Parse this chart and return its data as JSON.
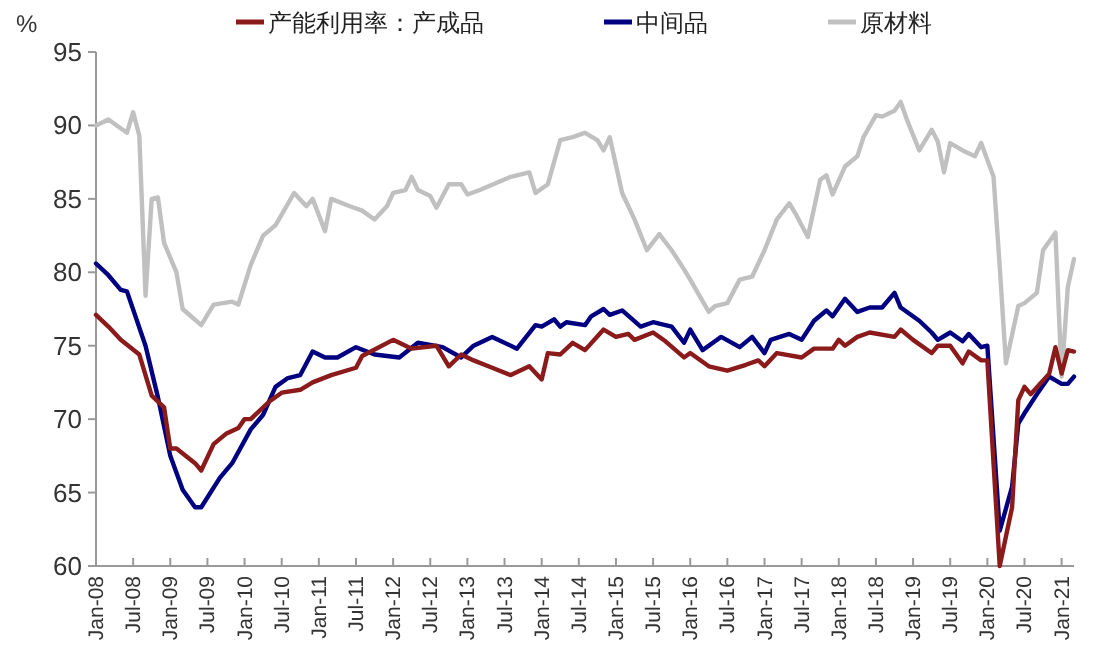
{
  "chart_data": {
    "type": "line",
    "ylabel": "%",
    "ylim": [
      60,
      95
    ],
    "yticks": [
      60,
      65,
      70,
      75,
      80,
      85,
      90,
      95
    ],
    "xlim": [
      "2008-01",
      "2021-03"
    ],
    "xticks": [
      {
        "value": "2008-01",
        "label": "Jan-08"
      },
      {
        "value": "2008-07",
        "label": "Jul-08"
      },
      {
        "value": "2009-01",
        "label": "Jan-09"
      },
      {
        "value": "2009-07",
        "label": "Jul-09"
      },
      {
        "value": "2010-01",
        "label": "Jan-10"
      },
      {
        "value": "2010-07",
        "label": "Jul-10"
      },
      {
        "value": "2011-01",
        "label": "Jan-11"
      },
      {
        "value": "2011-07",
        "label": "Jul-11"
      },
      {
        "value": "2012-01",
        "label": "Jan-12"
      },
      {
        "value": "2012-07",
        "label": "Jul-12"
      },
      {
        "value": "2013-01",
        "label": "Jan-13"
      },
      {
        "value": "2013-07",
        "label": "Jul-13"
      },
      {
        "value": "2014-01",
        "label": "Jan-14"
      },
      {
        "value": "2014-07",
        "label": "Jul-14"
      },
      {
        "value": "2015-01",
        "label": "Jan-15"
      },
      {
        "value": "2015-07",
        "label": "Jul-15"
      },
      {
        "value": "2016-01",
        "label": "Jan-16"
      },
      {
        "value": "2016-07",
        "label": "Jul-16"
      },
      {
        "value": "2017-01",
        "label": "Jan-17"
      },
      {
        "value": "2017-07",
        "label": "Jul-17"
      },
      {
        "value": "2018-01",
        "label": "Jan-18"
      },
      {
        "value": "2018-07",
        "label": "Jul-18"
      },
      {
        "value": "2019-01",
        "label": "Jan-19"
      },
      {
        "value": "2019-07",
        "label": "Jul-19"
      },
      {
        "value": "2020-01",
        "label": "Jan-20"
      },
      {
        "value": "2020-07",
        "label": "Jul-20"
      },
      {
        "value": "2021-01",
        "label": "Jan-21"
      }
    ],
    "grid": false,
    "legend": "top",
    "marker": "none",
    "line_style": "solid",
    "series": [
      {
        "name": "产能利用率：产成品",
        "color": "#8b1a1a",
        "x": [
          "2008-01",
          "2008-03",
          "2008-05",
          "2008-08",
          "2008-10",
          "2008-12",
          "2009-01",
          "2009-02",
          "2009-05",
          "2009-06",
          "2009-08",
          "2009-10",
          "2009-12",
          "2010-01",
          "2010-02",
          "2010-05",
          "2010-07",
          "2010-10",
          "2010-12",
          "2011-03",
          "2011-07",
          "2011-08",
          "2012-01",
          "2012-04",
          "2012-08",
          "2012-10",
          "2012-12",
          "2013-02",
          "2013-05",
          "2013-08",
          "2013-11",
          "2014-01",
          "2014-02",
          "2014-04",
          "2014-06",
          "2014-08",
          "2014-11",
          "2015-01",
          "2015-03",
          "2015-04",
          "2015-07",
          "2015-09",
          "2015-12",
          "2016-01",
          "2016-04",
          "2016-07",
          "2016-10",
          "2016-12",
          "2017-01",
          "2017-03",
          "2017-07",
          "2017-09",
          "2017-12",
          "2018-01",
          "2018-02",
          "2018-04",
          "2018-06",
          "2018-10",
          "2018-11",
          "2019-01",
          "2019-04",
          "2019-05",
          "2019-07",
          "2019-09",
          "2019-10",
          "2019-12",
          "2020-01",
          "2020-03",
          "2020-05",
          "2020-06",
          "2020-07",
          "2020-08",
          "2020-11",
          "2020-12",
          "2021-01",
          "2021-02",
          "2021-03"
        ],
        "values": [
          77.1,
          76.3,
          75.4,
          74.4,
          71.6,
          70.8,
          68.0,
          68.0,
          67.0,
          66.5,
          68.3,
          69.0,
          69.4,
          70.0,
          70.0,
          71.2,
          71.8,
          72.0,
          72.5,
          73.0,
          73.5,
          74.3,
          75.4,
          74.8,
          75.0,
          73.6,
          74.4,
          74.0,
          73.5,
          73.0,
          73.6,
          72.7,
          74.5,
          74.4,
          75.2,
          74.7,
          76.1,
          75.6,
          75.8,
          75.4,
          75.9,
          75.3,
          74.2,
          74.5,
          73.6,
          73.3,
          73.7,
          74.0,
          73.6,
          74.5,
          74.2,
          74.8,
          74.8,
          75.4,
          75.0,
          75.6,
          75.9,
          75.6,
          76.1,
          75.4,
          74.5,
          75.0,
          75.0,
          73.8,
          74.6,
          74.0,
          74.0,
          60.0,
          64.0,
          71.3,
          72.2,
          71.7,
          73.1,
          74.9,
          73.1,
          74.7,
          74.6
        ]
      },
      {
        "name": "中间品",
        "color": "#000080",
        "x": [
          "2008-01",
          "2008-03",
          "2008-05",
          "2008-06",
          "2008-09",
          "2008-11",
          "2009-01",
          "2009-03",
          "2009-05",
          "2009-06",
          "2009-09",
          "2009-11",
          "2010-02",
          "2010-04",
          "2010-06",
          "2010-08",
          "2010-10",
          "2010-12",
          "2011-02",
          "2011-04",
          "2011-07",
          "2011-10",
          "2012-02",
          "2012-05",
          "2012-09",
          "2012-12",
          "2013-02",
          "2013-05",
          "2013-09",
          "2013-12",
          "2014-01",
          "2014-03",
          "2014-04",
          "2014-05",
          "2014-08",
          "2014-09",
          "2014-11",
          "2014-12",
          "2015-02",
          "2015-05",
          "2015-07",
          "2015-10",
          "2015-12",
          "2016-01",
          "2016-03",
          "2016-05",
          "2016-06",
          "2016-09",
          "2016-11",
          "2017-01",
          "2017-02",
          "2017-05",
          "2017-07",
          "2017-09",
          "2017-11",
          "2017-12",
          "2018-02",
          "2018-04",
          "2018-06",
          "2018-08",
          "2018-10",
          "2018-11",
          "2019-02",
          "2019-04",
          "2019-05",
          "2019-07",
          "2019-09",
          "2019-10",
          "2019-12",
          "2020-01",
          "2020-03",
          "2020-05",
          "2020-06",
          "2020-07",
          "2020-09",
          "2020-11",
          "2021-01",
          "2021-02",
          "2021-03"
        ],
        "values": [
          80.6,
          79.8,
          78.8,
          78.7,
          75.0,
          71.5,
          67.5,
          65.2,
          64.0,
          64.0,
          66.0,
          67.0,
          69.3,
          70.3,
          72.2,
          72.8,
          73.0,
          74.6,
          74.2,
          74.2,
          74.9,
          74.4,
          74.2,
          75.2,
          74.9,
          74.2,
          75.0,
          75.6,
          74.8,
          76.4,
          76.3,
          76.8,
          76.3,
          76.6,
          76.4,
          77.0,
          77.5,
          77.1,
          77.4,
          76.3,
          76.6,
          76.3,
          75.2,
          76.1,
          74.7,
          75.3,
          75.6,
          74.9,
          75.6,
          74.5,
          75.4,
          75.8,
          75.4,
          76.7,
          77.4,
          77.0,
          78.2,
          77.3,
          77.6,
          77.6,
          78.6,
          77.6,
          76.7,
          75.9,
          75.4,
          75.9,
          75.3,
          75.8,
          74.9,
          75.0,
          62.4,
          65.4,
          69.7,
          70.4,
          71.7,
          72.9,
          72.4,
          72.4,
          72.9
        ]
      },
      {
        "name": "原材料",
        "color": "#c0c0c0",
        "x": [
          "2008-01",
          "2008-03",
          "2008-06",
          "2008-07",
          "2008-08",
          "2008-09",
          "2008-10",
          "2008-11",
          "2008-12",
          "2009-02",
          "2009-03",
          "2009-06",
          "2009-08",
          "2009-11",
          "2009-12",
          "2010-02",
          "2010-04",
          "2010-06",
          "2010-09",
          "2010-11",
          "2010-12",
          "2011-02",
          "2011-03",
          "2011-06",
          "2011-08",
          "2011-10",
          "2011-12",
          "2012-01",
          "2012-03",
          "2012-04",
          "2012-05",
          "2012-07",
          "2012-08",
          "2012-10",
          "2012-12",
          "2013-01",
          "2013-03",
          "2013-08",
          "2013-11",
          "2013-12",
          "2014-02",
          "2014-04",
          "2014-06",
          "2014-08",
          "2014-10",
          "2014-11",
          "2014-12",
          "2015-02",
          "2015-04",
          "2015-06",
          "2015-08",
          "2015-10",
          "2015-12",
          "2016-01",
          "2016-04",
          "2016-05",
          "2016-07",
          "2016-09",
          "2016-11",
          "2017-01",
          "2017-03",
          "2017-05",
          "2017-06",
          "2017-08",
          "2017-10",
          "2017-11",
          "2017-12",
          "2018-02",
          "2018-04",
          "2018-05",
          "2018-07",
          "2018-08",
          "2018-10",
          "2018-11",
          "2018-12",
          "2019-02",
          "2019-04",
          "2019-05",
          "2019-06",
          "2019-07",
          "2019-09",
          "2019-11",
          "2019-12",
          "2020-02",
          "2020-03",
          "2020-04",
          "2020-06",
          "2020-07",
          "2020-09",
          "2020-10",
          "2020-12",
          "2021-01",
          "2021-02",
          "2021-03"
        ],
        "values": [
          90.0,
          90.4,
          89.5,
          90.9,
          89.3,
          78.4,
          85.0,
          85.1,
          82.0,
          80.0,
          77.5,
          76.4,
          77.8,
          78.0,
          77.8,
          80.5,
          82.5,
          83.2,
          85.4,
          84.5,
          85.0,
          82.8,
          85.0,
          84.5,
          84.2,
          83.6,
          84.5,
          85.4,
          85.6,
          86.5,
          85.6,
          85.2,
          84.4,
          86.0,
          86.0,
          85.3,
          85.6,
          86.5,
          86.8,
          85.4,
          86.0,
          89.0,
          89.2,
          89.5,
          89.0,
          88.3,
          89.2,
          85.4,
          83.6,
          81.5,
          82.6,
          81.5,
          80.2,
          79.5,
          77.3,
          77.7,
          77.9,
          79.5,
          79.7,
          81.5,
          83.6,
          84.7,
          84.0,
          82.4,
          86.3,
          86.6,
          85.3,
          87.2,
          87.9,
          89.2,
          90.7,
          90.6,
          91.0,
          91.6,
          90.4,
          88.3,
          89.7,
          88.9,
          86.8,
          88.8,
          88.3,
          87.9,
          88.8,
          86.5,
          80.4,
          73.8,
          77.7,
          77.9,
          78.6,
          81.5,
          82.7,
          72.9,
          79.0,
          80.9
        ]
      }
    ]
  }
}
